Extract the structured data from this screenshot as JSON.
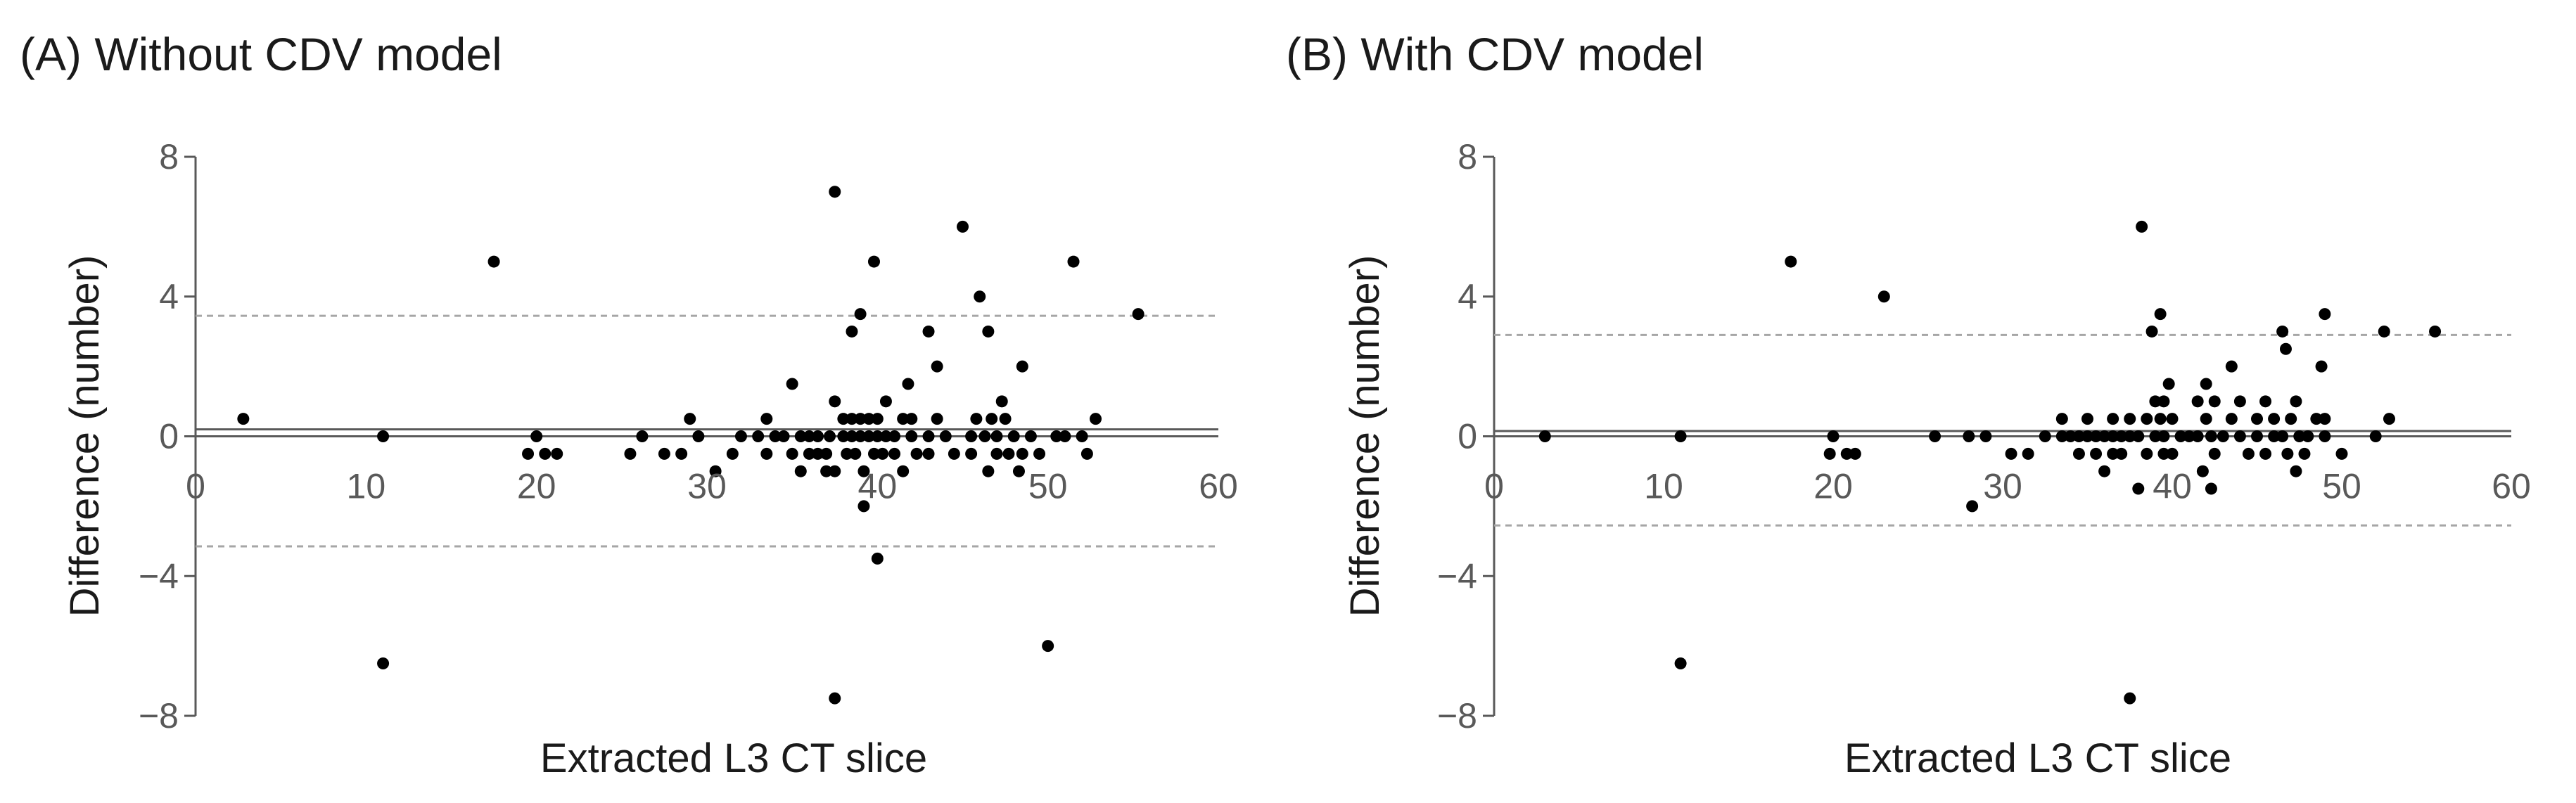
{
  "colors": {
    "points": "#000000",
    "axis": "#595959",
    "mean_line": "#595959",
    "limit_line": "#a6a6a6",
    "tick_text": "#595959",
    "title_text": "#1a1a1a"
  },
  "chart_data": [
    {
      "type": "scatter",
      "title": "(A) Without CDV model",
      "xlabel": "Extracted L3 CT slice",
      "ylabel": "Difference (number)",
      "xlim": [
        0,
        60
      ],
      "ylim": [
        -8,
        8
      ],
      "xticks": [
        "0",
        "10",
        "20",
        "30",
        "40",
        "50",
        "60"
      ],
      "yticks": [
        "8",
        "4",
        "0",
        "−4",
        "−8"
      ],
      "ytick_values": [
        8,
        4,
        0,
        -4,
        -8
      ],
      "xtick_values": [
        0,
        10,
        20,
        30,
        40,
        50,
        60
      ],
      "mean_lines": [
        0,
        0.2
      ],
      "limits_of_agreement": {
        "upper": 3.45,
        "lower": -3.15
      },
      "points": [
        [
          2.8,
          0.5
        ],
        [
          11,
          0
        ],
        [
          11,
          -6.5
        ],
        [
          17.5,
          5
        ],
        [
          20,
          0
        ],
        [
          19.5,
          -0.5
        ],
        [
          20.5,
          -0.5
        ],
        [
          21.2,
          -0.5
        ],
        [
          25.5,
          -0.5
        ],
        [
          26.2,
          0
        ],
        [
          27.5,
          -0.5
        ],
        [
          28.5,
          -0.5
        ],
        [
          29,
          0.5
        ],
        [
          29.5,
          0
        ],
        [
          30.5,
          -1
        ],
        [
          31.5,
          -0.5
        ],
        [
          32,
          0
        ],
        [
          33,
          0
        ],
        [
          33.5,
          0.5
        ],
        [
          33.5,
          -0.5
        ],
        [
          34,
          0
        ],
        [
          34.5,
          0
        ],
        [
          35,
          1.5
        ],
        [
          35,
          -0.5
        ],
        [
          35.5,
          0
        ],
        [
          35.5,
          -1
        ],
        [
          36,
          -0.5
        ],
        [
          36,
          0
        ],
        [
          36.5,
          -0.5
        ],
        [
          36.5,
          0
        ],
        [
          37,
          -0.5
        ],
        [
          37,
          -1
        ],
        [
          37.2,
          0
        ],
        [
          37.5,
          1
        ],
        [
          37.5,
          7
        ],
        [
          37.5,
          -1
        ],
        [
          37.5,
          -7.5
        ],
        [
          38,
          0.5
        ],
        [
          38,
          0
        ],
        [
          38.2,
          -0.5
        ],
        [
          38.5,
          3
        ],
        [
          38.5,
          0.5
        ],
        [
          38.5,
          0
        ],
        [
          38.7,
          -0.5
        ],
        [
          39,
          3.5
        ],
        [
          39,
          0.5
        ],
        [
          39,
          0
        ],
        [
          39.2,
          -1
        ],
        [
          39.2,
          -2
        ],
        [
          39.5,
          0.5
        ],
        [
          39.5,
          0
        ],
        [
          39.8,
          5
        ],
        [
          39.8,
          -0.5
        ],
        [
          40,
          0.5
        ],
        [
          40,
          0
        ],
        [
          40,
          -3.5
        ],
        [
          40.3,
          -0.5
        ],
        [
          40.5,
          1
        ],
        [
          40.5,
          0
        ],
        [
          41,
          0
        ],
        [
          41,
          -0.5
        ],
        [
          41.5,
          0.5
        ],
        [
          41.5,
          -1
        ],
        [
          41.8,
          1.5
        ],
        [
          42,
          0.5
        ],
        [
          42,
          0
        ],
        [
          42.3,
          -0.5
        ],
        [
          43,
          3
        ],
        [
          43,
          0
        ],
        [
          43,
          -0.5
        ],
        [
          43.5,
          2
        ],
        [
          43.5,
          0.5
        ],
        [
          44,
          0
        ],
        [
          44.5,
          -0.5
        ],
        [
          45,
          6
        ],
        [
          45.5,
          0
        ],
        [
          45.5,
          -0.5
        ],
        [
          45.8,
          0.5
        ],
        [
          46,
          4
        ],
        [
          46.3,
          0
        ],
        [
          46.5,
          3
        ],
        [
          46.5,
          -1
        ],
        [
          46.7,
          0.5
        ],
        [
          47,
          0
        ],
        [
          47,
          -0.5
        ],
        [
          47.3,
          1
        ],
        [
          47.5,
          0.5
        ],
        [
          47.7,
          -0.5
        ],
        [
          48,
          0
        ],
        [
          48.3,
          -1
        ],
        [
          48.5,
          2
        ],
        [
          48.5,
          -0.5
        ],
        [
          49,
          0
        ],
        [
          49.5,
          -0.5
        ],
        [
          50,
          -6
        ],
        [
          50.5,
          0
        ],
        [
          51,
          0
        ],
        [
          51.5,
          5
        ],
        [
          52,
          0
        ],
        [
          52.3,
          -0.5
        ],
        [
          52.8,
          0.5
        ],
        [
          55.3,
          3.5
        ]
      ]
    },
    {
      "type": "scatter",
      "title": "(B) With CDV model",
      "xlabel": "Extracted L3 CT slice",
      "ylabel": "Difference (number)",
      "xlim": [
        0,
        60
      ],
      "ylim": [
        -8,
        8
      ],
      "xticks": [
        "0",
        "10",
        "20",
        "30",
        "40",
        "50",
        "60"
      ],
      "yticks": [
        "8",
        "4",
        "0",
        "−4",
        "−8"
      ],
      "ytick_values": [
        8,
        4,
        0,
        -4,
        -8
      ],
      "xtick_values": [
        0,
        10,
        20,
        30,
        40,
        50,
        60
      ],
      "mean_lines": [
        0,
        0.15
      ],
      "limits_of_agreement": {
        "upper": 2.9,
        "lower": -2.55
      },
      "points": [
        [
          3,
          0
        ],
        [
          11,
          0
        ],
        [
          11,
          -6.5
        ],
        [
          17.5,
          5
        ],
        [
          20,
          0
        ],
        [
          19.8,
          -0.5
        ],
        [
          20.8,
          -0.5
        ],
        [
          21.3,
          -0.5
        ],
        [
          23,
          4
        ],
        [
          26,
          0
        ],
        [
          28,
          0
        ],
        [
          28.2,
          -2
        ],
        [
          29,
          0
        ],
        [
          30.5,
          -0.5
        ],
        [
          31.5,
          -0.5
        ],
        [
          32.5,
          0
        ],
        [
          33.5,
          0.5
        ],
        [
          33.5,
          0
        ],
        [
          34,
          0
        ],
        [
          34.5,
          0
        ],
        [
          34.5,
          -0.5
        ],
        [
          35,
          0
        ],
        [
          35,
          0.5
        ],
        [
          35.5,
          0
        ],
        [
          35.5,
          -0.5
        ],
        [
          36,
          0
        ],
        [
          36,
          -1
        ],
        [
          36.5,
          0.5
        ],
        [
          36.5,
          0
        ],
        [
          36.5,
          -0.5
        ],
        [
          37,
          0
        ],
        [
          37,
          -0.5
        ],
        [
          37.5,
          0.5
        ],
        [
          37.5,
          0
        ],
        [
          37.5,
          -7.5
        ],
        [
          38,
          0
        ],
        [
          38,
          -1.5
        ],
        [
          38.2,
          6
        ],
        [
          38.5,
          0.5
        ],
        [
          38.5,
          -0.5
        ],
        [
          38.8,
          3
        ],
        [
          39,
          1
        ],
        [
          39,
          0
        ],
        [
          39.3,
          3.5
        ],
        [
          39.3,
          0.5
        ],
        [
          39.5,
          1
        ],
        [
          39.5,
          0
        ],
        [
          39.5,
          -0.5
        ],
        [
          39.8,
          1.5
        ],
        [
          40,
          0.5
        ],
        [
          40,
          -0.5
        ],
        [
          40.5,
          0
        ],
        [
          41,
          0
        ],
        [
          41.5,
          1
        ],
        [
          41.5,
          0
        ],
        [
          41.8,
          -1
        ],
        [
          42,
          1.5
        ],
        [
          42,
          0.5
        ],
        [
          42.3,
          0
        ],
        [
          42.3,
          -1.5
        ],
        [
          42.5,
          1
        ],
        [
          42.5,
          -0.5
        ],
        [
          43,
          0
        ],
        [
          43.5,
          2
        ],
        [
          43.5,
          0.5
        ],
        [
          44,
          1
        ],
        [
          44,
          0
        ],
        [
          44.5,
          -0.5
        ],
        [
          45,
          0.5
        ],
        [
          45,
          0
        ],
        [
          45.5,
          1
        ],
        [
          45.5,
          -0.5
        ],
        [
          46,
          0.5
        ],
        [
          46,
          0
        ],
        [
          46.5,
          3
        ],
        [
          46.5,
          0
        ],
        [
          46.7,
          2.5
        ],
        [
          46.8,
          -0.5
        ],
        [
          47,
          0.5
        ],
        [
          47.3,
          1
        ],
        [
          47.3,
          -1
        ],
        [
          47.5,
          0
        ],
        [
          47.8,
          -0.5
        ],
        [
          48,
          0
        ],
        [
          48.5,
          0.5
        ],
        [
          48.8,
          2
        ],
        [
          49,
          3.5
        ],
        [
          49,
          0
        ],
        [
          49,
          0.5
        ],
        [
          50,
          -0.5
        ],
        [
          52,
          0
        ],
        [
          52.5,
          3
        ],
        [
          52.8,
          0.5
        ],
        [
          55.5,
          3
        ]
      ]
    }
  ]
}
